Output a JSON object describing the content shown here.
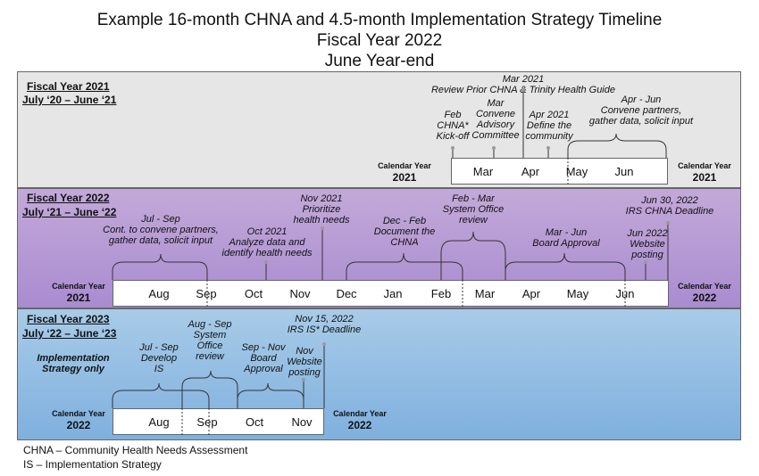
{
  "title": {
    "line1": "Example 16-month CHNA and 4.5-month Implementation Strategy Timeline",
    "line2": "Fiscal Year 2022",
    "line3": "June Year-end"
  },
  "band1": {
    "fy": "Fiscal Year 2021",
    "range": "July ‘20 – June ‘21",
    "cal_left_label": "Calendar Year",
    "cal_left_year": "2021",
    "cal_right_label": "Calendar Year",
    "cal_right_year": "2021",
    "months": [
      "Mar",
      "Apr",
      "May",
      "Jun"
    ],
    "milestones": {
      "kickoff": "Feb\nCHNA*\nKick-off",
      "advisory": "Mar\nConvene\nAdvisory\nCommittee",
      "review": "Mar 2021\nReview Prior CHNA & Trinity Health Guide",
      "define": "Apr 2021\nDefine the\ncommunity",
      "convene": "Apr - Jun\nConvene partners,\ngather data, solicit input"
    }
  },
  "band2": {
    "fy": "Fiscal Year 2022",
    "range": "July ‘21 – June ‘22",
    "cal_left_label": "Calendar Year",
    "cal_left_year": "2021",
    "cal_right_label": "Calendar Year",
    "cal_right_year": "2022",
    "months": [
      "Aug",
      "Sep",
      "Oct",
      "Nov",
      "Dec",
      "Jan",
      "Feb",
      "Mar",
      "Apr",
      "May",
      "Jun"
    ],
    "milestones": {
      "cont": "Jul - Sep\nCont. to convene partners,\ngather data, solicit input",
      "analyze": "Oct 2021\nAnalyze data and\nidentify health needs",
      "prioritize": "Nov 2021\nPrioritize\nhealth needs",
      "document": "Dec - Feb\nDocument the\nCHNA",
      "system": "Feb - Mar\nSystem Office\nreview",
      "board": "Mar - Jun\nBoard Approval",
      "deadline": "Jun 30, 2022\nIRS CHNA Deadline",
      "website": "Jun 2022\nWebsite\nposting"
    }
  },
  "band3": {
    "fy": "Fiscal Year 2023",
    "range": "July ‘22 – June ‘23",
    "impl": "Implementation\nStrategy only",
    "cal_left_label": "Calendar Year",
    "cal_left_year": "2022",
    "cal_right_label": "Calendar Year",
    "cal_right_year": "2022",
    "months": [
      "Aug",
      "Sep",
      "Oct",
      "Nov"
    ],
    "milestones": {
      "develop": "Jul - Sep\nDevelop\nIS",
      "system": "Aug - Sep\nSystem\nOffice\nreview",
      "board": "Sep - Nov\nBoard\nApproval",
      "deadline": "Nov 15, 2022\nIRS IS* Deadline",
      "website": "Nov\nWebsite\nposting"
    }
  },
  "legend": {
    "chna": "CHNA – Community Health Needs Assessment",
    "is": "IS – Implementation Strategy"
  },
  "colors": {
    "band1": "#e6e6e6",
    "band2_top": "#c3a9d9",
    "band2_bottom": "#a98cd0",
    "band3_top": "#a8cbe8",
    "band3_bottom": "#7fb0de"
  }
}
